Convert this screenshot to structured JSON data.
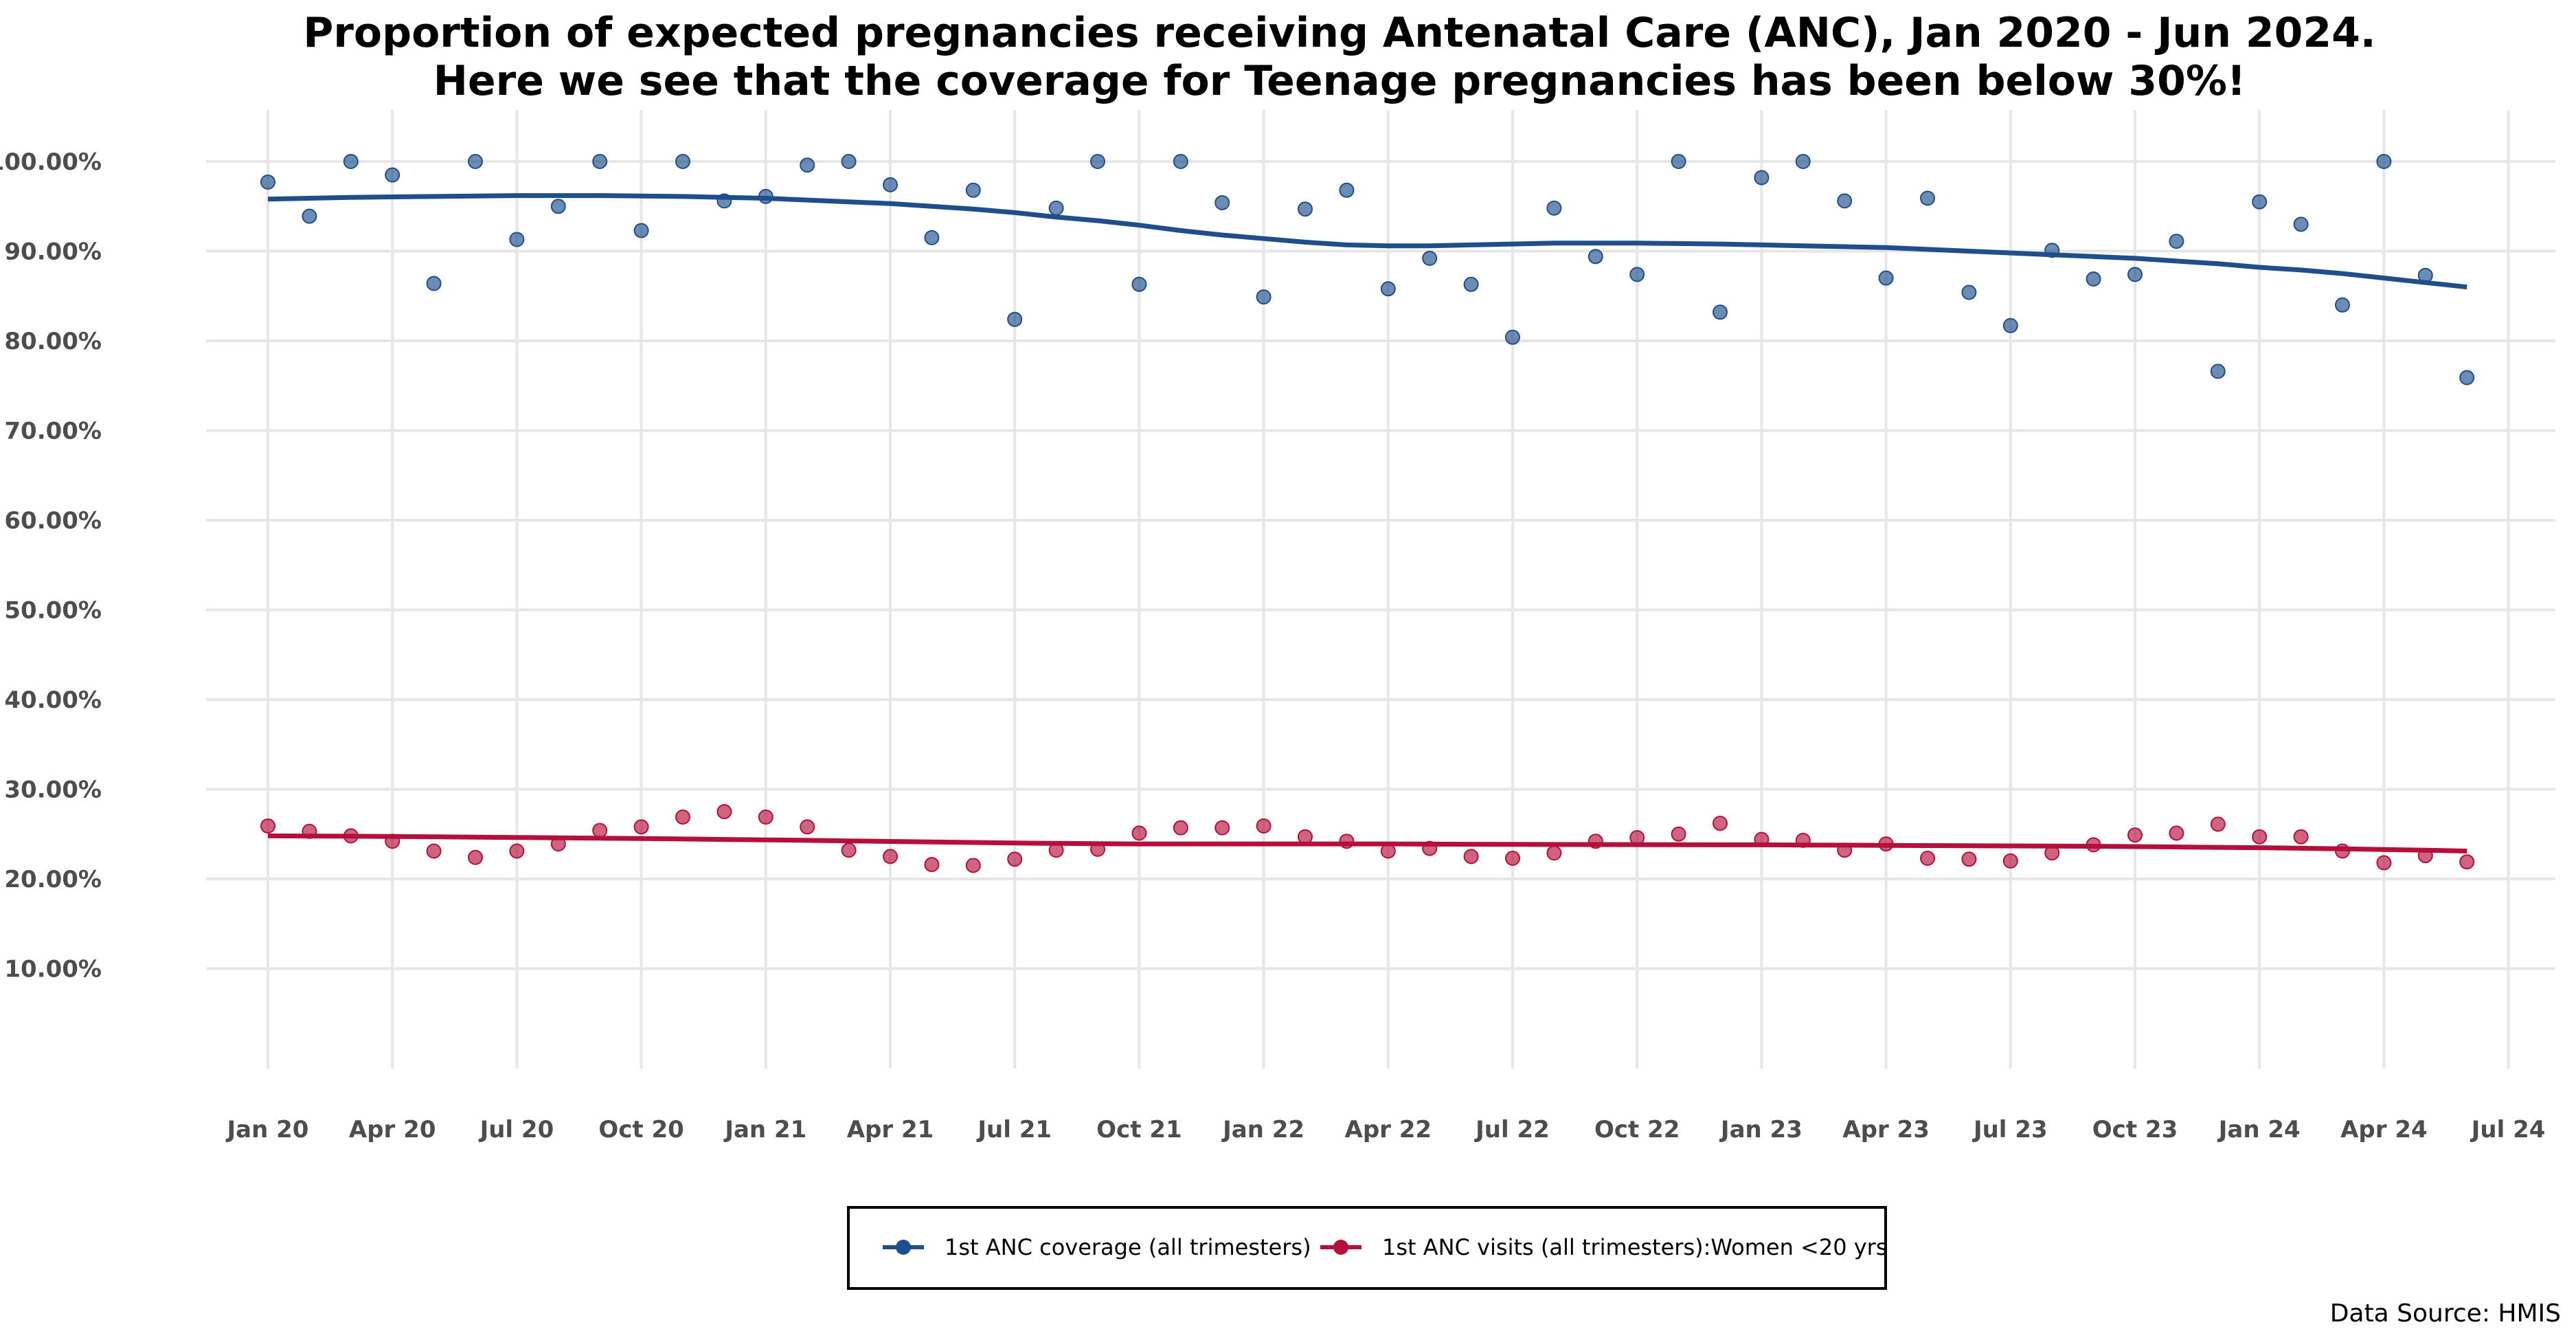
{
  "chart_data": {
    "type": "scatter",
    "title": "Proportion of expected pregnancies receiving Antenatal Care (ANC), Jan 2020 - Jun 2024.",
    "subtitle": "Here we see that the coverage for Teenage pregnancies has been below 30%!",
    "xlabel": "",
    "ylabel": "",
    "ylim": [
      0,
      105
    ],
    "y_ticks": [
      "10.00%",
      "20.00%",
      "30.00%",
      "40.00%",
      "50.00%",
      "60.00%",
      "70.00%",
      "80.00%",
      "90.00%",
      "100.00%"
    ],
    "x_ticks": [
      "Jan 20",
      "Apr 20",
      "Jul 20",
      "Oct 20",
      "Jan 21",
      "Apr 21",
      "Jul 21",
      "Oct 21",
      "Jan 22",
      "Apr 22",
      "Jul 22",
      "Oct 22",
      "Jan 23",
      "Apr 23",
      "Jul 23",
      "Oct 23",
      "Jan 24",
      "Apr 24",
      "Jul 24"
    ],
    "x_range": [
      "Dec 2019",
      "Aug 2024"
    ],
    "grid": true,
    "legend_position": "bottom",
    "source_note": "Data Source: HMIS",
    "months": [
      "2020-01",
      "2020-02",
      "2020-03",
      "2020-04",
      "2020-05",
      "2020-06",
      "2020-07",
      "2020-08",
      "2020-09",
      "2020-10",
      "2020-11",
      "2020-12",
      "2021-01",
      "2021-02",
      "2021-03",
      "2021-04",
      "2021-05",
      "2021-06",
      "2021-07",
      "2021-08",
      "2021-09",
      "2021-10",
      "2021-11",
      "2021-12",
      "2022-01",
      "2022-02",
      "2022-03",
      "2022-04",
      "2022-05",
      "2022-06",
      "2022-07",
      "2022-08",
      "2022-09",
      "2022-10",
      "2022-11",
      "2022-12",
      "2023-01",
      "2023-02",
      "2023-03",
      "2023-04",
      "2023-05",
      "2023-06",
      "2023-07",
      "2023-08",
      "2023-09",
      "2023-10",
      "2023-11",
      "2023-12",
      "2024-01",
      "2024-02",
      "2024-03",
      "2024-04",
      "2024-05",
      "2024-06"
    ],
    "series": [
      {
        "name": "1st ANC coverage (all trimesters)",
        "color": "#1f4e8c",
        "values": [
          97.7,
          93.9,
          100.0,
          98.5,
          86.4,
          100.0,
          91.3,
          95.0,
          100.0,
          92.3,
          100.0,
          95.6,
          96.1,
          99.6,
          100.0,
          97.4,
          91.5,
          96.8,
          82.4,
          94.8,
          100.0,
          86.3,
          100.0,
          95.4,
          84.9,
          94.7,
          96.8,
          85.8,
          89.2,
          86.3,
          80.4,
          94.8,
          89.4,
          87.4,
          100.0,
          83.2,
          98.2,
          100.0,
          95.6,
          87.0,
          95.9,
          85.4,
          81.7,
          90.1,
          86.9,
          87.4,
          91.1,
          76.6,
          95.5,
          93.0,
          84.0,
          100.0,
          87.3,
          75.9
        ],
        "trend": [
          95.8,
          95.9,
          96.0,
          96.05,
          96.1,
          96.15,
          96.2,
          96.2,
          96.2,
          96.15,
          96.1,
          96.0,
          95.9,
          95.7,
          95.5,
          95.3,
          95.0,
          94.7,
          94.3,
          93.8,
          93.4,
          92.9,
          92.3,
          91.8,
          91.4,
          91.0,
          90.7,
          90.6,
          90.6,
          90.7,
          90.8,
          90.9,
          90.9,
          90.9,
          90.85,
          90.8,
          90.7,
          90.6,
          90.5,
          90.4,
          90.2,
          90.0,
          89.8,
          89.6,
          89.4,
          89.2,
          88.9,
          88.6,
          88.2,
          87.9,
          87.5,
          87.0,
          86.5,
          86.0
        ]
      },
      {
        "name": "1st ANC visits (all trimesters):Women <20 yrs",
        "color": "#b5103c",
        "values": [
          25.9,
          25.3,
          24.8,
          24.2,
          23.1,
          22.4,
          23.1,
          23.9,
          25.4,
          25.8,
          26.9,
          27.5,
          26.9,
          25.8,
          23.2,
          22.5,
          21.6,
          21.5,
          22.2,
          23.2,
          23.3,
          25.1,
          25.7,
          25.7,
          25.9,
          24.7,
          24.2,
          23.1,
          23.4,
          22.5,
          22.3,
          22.9,
          24.2,
          24.6,
          25.0,
          26.2,
          24.4,
          24.3,
          23.2,
          23.9,
          22.3,
          22.2,
          22.0,
          22.9,
          23.8,
          24.9,
          25.1,
          26.1,
          24.7,
          24.7,
          23.1,
          21.8,
          22.6,
          21.9
        ],
        "trend": [
          24.8,
          24.78,
          24.76,
          24.73,
          24.7,
          24.66,
          24.62,
          24.58,
          24.54,
          24.5,
          24.45,
          24.4,
          24.35,
          24.3,
          24.24,
          24.18,
          24.12,
          24.06,
          24.0,
          23.96,
          23.92,
          23.9,
          23.9,
          23.9,
          23.9,
          23.9,
          23.9,
          23.9,
          23.88,
          23.86,
          23.85,
          23.84,
          23.83,
          23.82,
          23.81,
          23.8,
          23.8,
          23.78,
          23.76,
          23.74,
          23.72,
          23.7,
          23.68,
          23.66,
          23.64,
          23.6,
          23.56,
          23.52,
          23.48,
          23.42,
          23.36,
          23.28,
          23.2,
          23.1
        ]
      }
    ]
  }
}
